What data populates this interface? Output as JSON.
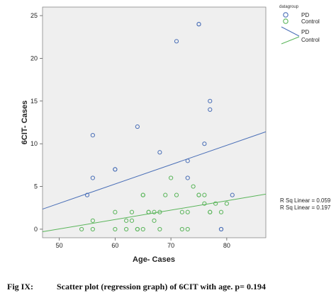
{
  "chart_data": {
    "type": "scatter",
    "xlabel": "Age- Cases",
    "ylabel": "6CIT- Cases",
    "xlim": [
      47,
      87
    ],
    "ylim": [
      -1,
      26
    ],
    "xticks": [
      50,
      60,
      70,
      80
    ],
    "yticks": [
      0,
      5,
      10,
      15,
      20,
      25
    ],
    "grid": false,
    "legend_position": "top-right",
    "legend_title": "datagroup",
    "series": [
      {
        "name": "PD",
        "color": "#4a6fb7",
        "x": [
          55,
          56,
          56,
          60,
          60,
          64,
          68,
          71,
          73,
          73,
          75,
          75,
          76,
          77,
          77,
          79,
          79,
          81
        ],
        "y": [
          4,
          6,
          11,
          7,
          7,
          12,
          9,
          22,
          8,
          6,
          24,
          24,
          10,
          15,
          14,
          0,
          0,
          4
        ]
      },
      {
        "name": "Control",
        "color": "#5ab55a",
        "x": [
          54,
          56,
          56,
          60,
          60,
          62,
          62,
          63,
          63,
          64,
          64,
          65,
          65,
          65,
          66,
          66,
          67,
          67,
          68,
          68,
          69,
          70,
          71,
          72,
          72,
          73,
          73,
          74,
          75,
          75,
          76,
          76,
          77,
          77,
          78,
          79,
          80
        ],
        "y": [
          0,
          1,
          0,
          2,
          0,
          1,
          0,
          1,
          2,
          0,
          0,
          4,
          4,
          0,
          2,
          2,
          1,
          2,
          2,
          0,
          4,
          6,
          4,
          0,
          2,
          0,
          2,
          5,
          4,
          4,
          4,
          3,
          2,
          2,
          3,
          2,
          3
        ]
      }
    ],
    "fit_lines": [
      {
        "name": "PD",
        "color": "#4a6fb7",
        "x": [
          47,
          87
        ],
        "y": [
          2.35,
          11.4
        ]
      },
      {
        "name": "Control",
        "color": "#5ab55a",
        "x": [
          47,
          87
        ],
        "y": [
          -0.3,
          4.1
        ]
      }
    ],
    "annotations": [
      "R Sq Linear = 0.059",
      "R Sq Linear = 0.197"
    ]
  },
  "caption": {
    "label": "Fig IX:",
    "text": "Scatter plot (regression graph) of 6CIT with age. p= 0.194"
  }
}
